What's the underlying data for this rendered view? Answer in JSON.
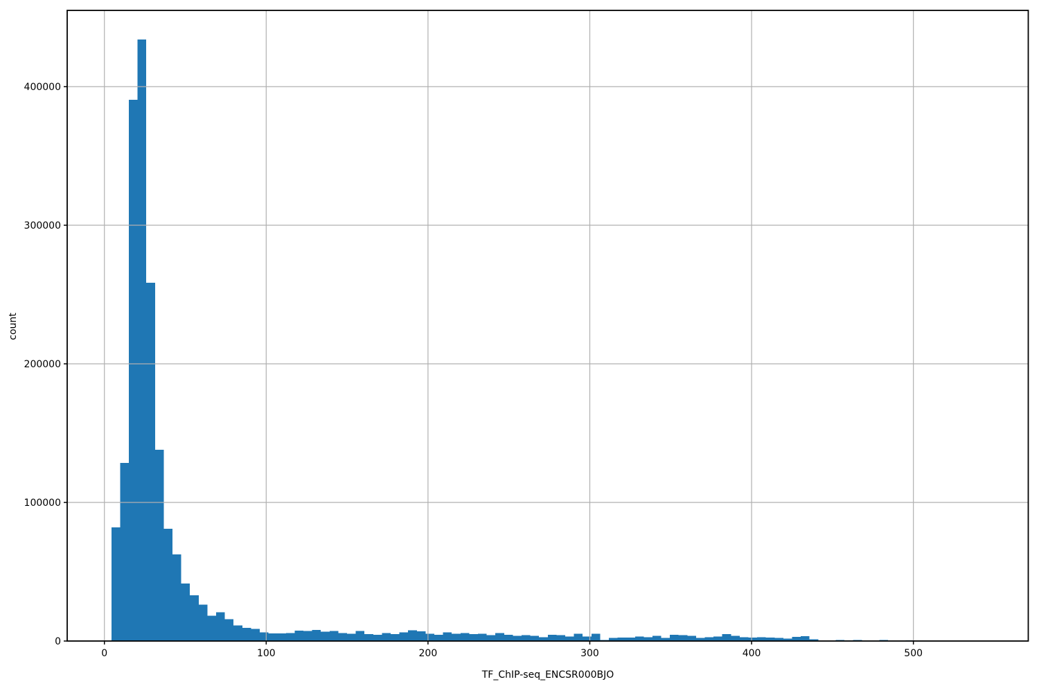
{
  "figure": {
    "kind": "histogram-figure"
  },
  "chart_data": {
    "type": "bar",
    "subtype": "histogram",
    "title": "",
    "xlabel": "TF_ChIP-seq_ENCSR000BJO",
    "ylabel": "count",
    "legend_position": "none",
    "grid": true,
    "grid_on_top_of_bars": true,
    "bar_color": "#1f77b4",
    "grid_color": "#b0b0b0",
    "spine_color": "#000000",
    "text_color": "#000000",
    "background_color": "#ffffff",
    "xlim": [
      -23,
      571
    ],
    "ylim": [
      0,
      455000
    ],
    "xticks": [
      0,
      100,
      200,
      300,
      400,
      500
    ],
    "yticks": [
      0,
      100000,
      200000,
      300000,
      400000
    ],
    "bin_start": 4.3,
    "bin_width": 5.394,
    "counts": [
      82000,
      128500,
      390500,
      434000,
      258500,
      138000,
      81000,
      62500,
      41500,
      33000,
      26300,
      18300,
      20800,
      15800,
      11200,
      9600,
      8800,
      6300,
      5500,
      5500,
      5800,
      7500,
      7200,
      7900,
      6700,
      7200,
      5800,
      5300,
      7200,
      5000,
      4500,
      5800,
      5000,
      6200,
      7800,
      7000,
      5300,
      4500,
      6200,
      5300,
      5800,
      5000,
      5300,
      4200,
      5800,
      4500,
      3800,
      4200,
      3700,
      2800,
      4500,
      4200,
      3300,
      5300,
      3300,
      5300,
      800,
      2200,
      2500,
      2500,
      3300,
      2800,
      3800,
      2200,
      4500,
      4200,
      3800,
      2200,
      2800,
      3300,
      5000,
      3800,
      2800,
      2500,
      2800,
      2500,
      2200,
      1800,
      3000,
      3500,
      1300,
      200,
      200,
      800,
      500,
      800,
      300,
      100,
      800,
      100,
      100,
      400,
      100
    ]
  }
}
